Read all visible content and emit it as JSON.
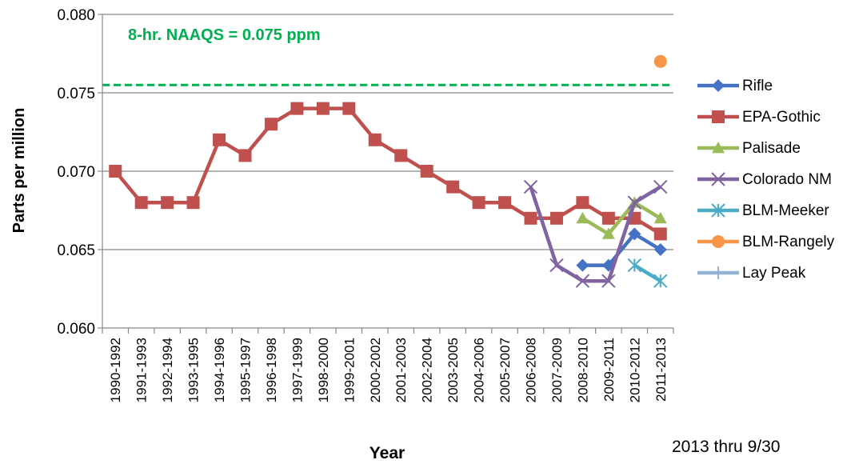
{
  "chart_data": {
    "type": "line",
    "title": "",
    "xlabel": "Year",
    "ylabel": "Parts per million",
    "ylim": [
      0.06,
      0.08
    ],
    "yticks": [
      "0.060",
      "0.065",
      "0.070",
      "0.075",
      "0.080"
    ],
    "ytick_values": [
      0.06,
      0.065,
      0.07,
      0.075,
      0.08
    ],
    "grid": "horizontal",
    "legend_position": "right",
    "categories": [
      "1990-1992",
      "1991-1993",
      "1992-1994",
      "1993-1995",
      "1994-1996",
      "1995-1997",
      "1996-1998",
      "1997-1999",
      "1998-2000",
      "1999-2001",
      "2000-2002",
      "2001-2003",
      "2002-2004",
      "2003-2005",
      "2004-2006",
      "2005-2007",
      "2006-2008",
      "2007-2009",
      "2008-2010",
      "2009-2011",
      "2010-2012",
      "2011-2013"
    ],
    "series": [
      {
        "name": "Rifle",
        "color": "#4472C4",
        "marker": "diamond",
        "values": [
          null,
          null,
          null,
          null,
          null,
          null,
          null,
          null,
          null,
          null,
          null,
          null,
          null,
          null,
          null,
          null,
          null,
          null,
          0.064,
          0.064,
          0.066,
          0.065
        ]
      },
      {
        "name": "EPA-Gothic",
        "color": "#C0504D",
        "marker": "square",
        "values": [
          0.07,
          0.068,
          0.068,
          0.068,
          0.072,
          0.071,
          0.073,
          0.074,
          0.074,
          0.074,
          0.072,
          0.071,
          0.07,
          0.069,
          0.068,
          0.068,
          0.067,
          0.067,
          0.068,
          0.067,
          0.067,
          0.066
        ]
      },
      {
        "name": "Palisade",
        "color": "#9BBB59",
        "marker": "triangle",
        "values": [
          null,
          null,
          null,
          null,
          null,
          null,
          null,
          null,
          null,
          null,
          null,
          null,
          null,
          null,
          null,
          null,
          null,
          null,
          0.067,
          0.066,
          0.068,
          0.067
        ]
      },
      {
        "name": "Colorado NM",
        "color": "#8064A2",
        "marker": "x",
        "values": [
          null,
          null,
          null,
          null,
          null,
          null,
          null,
          null,
          null,
          null,
          null,
          null,
          null,
          null,
          null,
          null,
          0.069,
          0.064,
          0.063,
          0.063,
          0.068,
          0.069
        ]
      },
      {
        "name": "BLM-Meeker",
        "color": "#4BACC6",
        "marker": "star",
        "values": [
          null,
          null,
          null,
          null,
          null,
          null,
          null,
          null,
          null,
          null,
          null,
          null,
          null,
          null,
          null,
          null,
          null,
          null,
          null,
          null,
          0.064,
          0.063
        ]
      },
      {
        "name": "BLM-Rangely",
        "color": "#F79646",
        "marker": "circle",
        "values": [
          null,
          null,
          null,
          null,
          null,
          null,
          null,
          null,
          null,
          null,
          null,
          null,
          null,
          null,
          null,
          null,
          null,
          null,
          null,
          null,
          null,
          0.077
        ]
      },
      {
        "name": "Lay Peak",
        "color": "#95B3D7",
        "marker": "plus",
        "values": [
          null,
          null,
          null,
          null,
          null,
          null,
          null,
          null,
          null,
          null,
          null,
          null,
          null,
          null,
          null,
          null,
          null,
          null,
          null,
          null,
          null,
          null
        ]
      }
    ],
    "reference_line": {
      "value": 0.0755,
      "label": "8-hr. NAAQS = 0.075  ppm",
      "color": "#00B050"
    },
    "footnote": "2013 thru 9/30"
  }
}
